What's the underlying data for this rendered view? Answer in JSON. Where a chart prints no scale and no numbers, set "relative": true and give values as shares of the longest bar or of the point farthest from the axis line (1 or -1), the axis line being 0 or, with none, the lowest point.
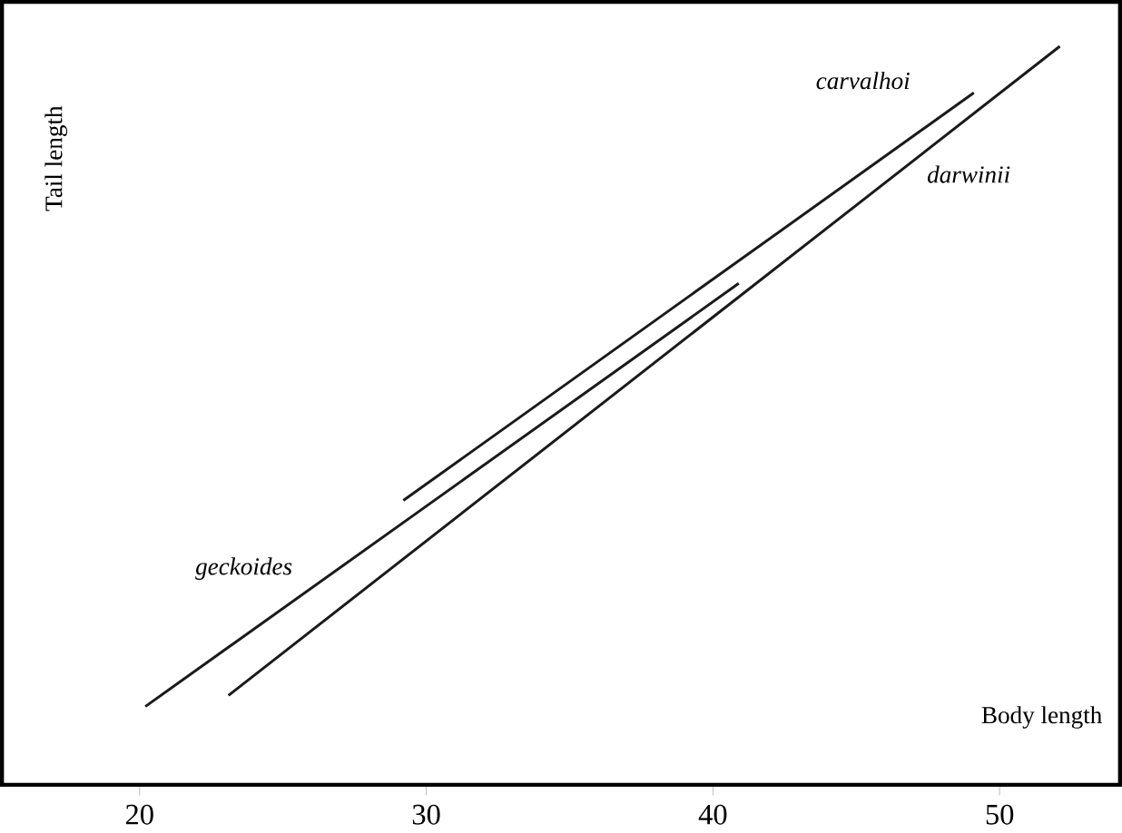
{
  "chart_data": {
    "type": "line",
    "relative": true,
    "xlabel": "Body length",
    "ylabel": "Tail length",
    "xlim": [
      15.2,
      54.2
    ],
    "xticks": [
      20,
      30,
      40,
      50
    ],
    "series": [
      {
        "name": "geckoides",
        "color": "#1a1a1a",
        "x": [
          20.2,
          40.9
        ],
        "values": [
          0.106,
          0.679
        ]
      },
      {
        "name": "carvalhoi",
        "color": "#1a1a1a",
        "x": [
          29.2,
          49.1
        ],
        "values": [
          0.385,
          0.937
        ]
      },
      {
        "name": "darwinii",
        "color": "#1a1a1a",
        "x": [
          23.1,
          52.1
        ],
        "values": [
          0.121,
          1.0
        ]
      }
    ]
  }
}
